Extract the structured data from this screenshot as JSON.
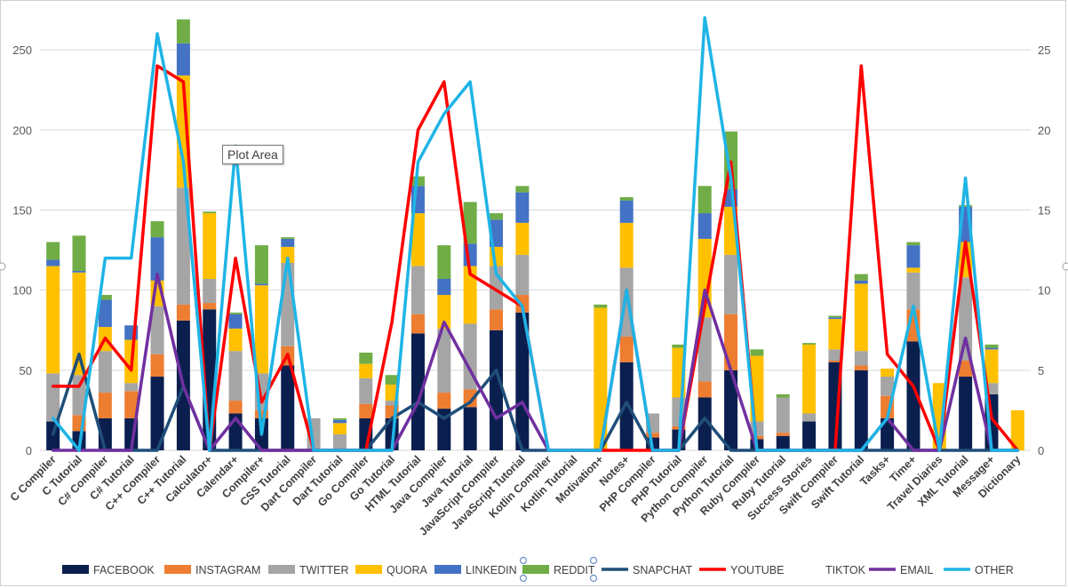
{
  "tooltip": "Plot Area",
  "chart_data": {
    "type": "bar",
    "stacked": true,
    "categories": [
      "C Compiler",
      "C Tutorial",
      "C# Compiler",
      "C# Tutorial",
      "C++ Compiler",
      "C++ Tutorial",
      "Calculator+",
      "Calendar+",
      "Compiler+",
      "CSS Tutorial",
      "Dart Compiler",
      "Dart Tutorial",
      "Go Compiler",
      "Go Tutorial",
      "HTML Tutorial",
      "Java Compiler",
      "Java Tutorial",
      "JavaScript Compiler",
      "JavaScript Tutorial",
      "Kotlin Compiler",
      "Kotlin Tutorial",
      "Motivation+",
      "Notes+",
      "PHP Compiler",
      "PHP Tutorial",
      "Python Compiler",
      "Python Tutorial",
      "Ruby Compiler",
      "Ruby Tutorial",
      "Success Stories",
      "Swift Compiler",
      "Swift Tutorial",
      "Tasks+",
      "Time+",
      "Travel Diaries",
      "XML Tutorial",
      "Message+",
      "Dictionary"
    ],
    "ylim": [
      0,
      270
    ],
    "y2lim": [
      0,
      27
    ],
    "y_ticks": [
      "0",
      "50",
      "100",
      "150",
      "200",
      "250"
    ],
    "y2_ticks": [
      "0",
      "5",
      "10",
      "15",
      "20",
      "25"
    ],
    "grid": true,
    "legend_position": "bottom",
    "bar_series": [
      {
        "name": "FACEBOOK",
        "color": "#0b1f4f",
        "values": [
          18,
          12,
          20,
          20,
          46,
          81,
          88,
          23,
          20,
          53,
          0,
          0,
          20,
          20,
          73,
          26,
          27,
          75,
          86,
          0,
          0,
          0,
          55,
          8,
          13,
          33,
          50,
          7,
          9,
          18,
          55,
          50,
          20,
          68,
          0,
          46,
          35,
          0
        ]
      },
      {
        "name": "INSTAGRAM",
        "color": "#ed7d31",
        "values": [
          0,
          10,
          16,
          17,
          14,
          10,
          4,
          8,
          5,
          12,
          0,
          0,
          9,
          8,
          12,
          10,
          11,
          13,
          11,
          0,
          0,
          0,
          16,
          3,
          2,
          10,
          35,
          2,
          2,
          0,
          1,
          3,
          14,
          20,
          0,
          10,
          0,
          0
        ]
      },
      {
        "name": "TWITTER",
        "color": "#a5a5a5",
        "values": [
          30,
          25,
          26,
          5,
          30,
          73,
          15,
          31,
          23,
          52,
          20,
          10,
          16,
          3,
          30,
          40,
          41,
          27,
          25,
          0,
          0,
          0,
          43,
          12,
          18,
          40,
          37,
          9,
          22,
          5,
          7,
          9,
          12,
          23,
          0,
          52,
          7,
          0
        ]
      },
      {
        "name": "QUORA",
        "color": "#ffc000",
        "values": [
          67,
          64,
          15,
          27,
          16,
          70,
          41,
          14,
          55,
          10,
          0,
          7,
          9,
          10,
          33,
          21,
          36,
          12,
          20,
          0,
          0,
          89,
          28,
          0,
          31,
          49,
          30,
          41,
          0,
          43,
          19,
          42,
          5,
          3,
          42,
          22,
          21,
          25
        ]
      },
      {
        "name": "LINKEDIN",
        "color": "#4472c4",
        "values": [
          4,
          1,
          17,
          9,
          27,
          20,
          0,
          9,
          1,
          5,
          0,
          2,
          0,
          0,
          17,
          10,
          14,
          17,
          19,
          0,
          0,
          0,
          14,
          0,
          0,
          16,
          11,
          0,
          0,
          0,
          1,
          2,
          0,
          14,
          0,
          22,
          1,
          0
        ]
      },
      {
        "name": "REDDIT",
        "color": "#70ad47",
        "values": [
          11,
          22,
          3,
          0,
          10,
          15,
          1,
          1,
          24,
          1,
          0,
          1,
          7,
          6,
          6,
          21,
          26,
          4,
          4,
          0,
          1,
          2,
          2,
          0,
          2,
          17,
          36,
          4,
          2,
          1,
          1,
          4,
          0,
          2,
          0,
          1,
          2,
          0
        ]
      }
    ],
    "line_series": [
      {
        "name": "SNAPCHAT",
        "color": "#1f4e79",
        "values": [
          1,
          6,
          0,
          0,
          0,
          4,
          0,
          0,
          0,
          0,
          0,
          0,
          0,
          2,
          3,
          2,
          3,
          5,
          0,
          0,
          0,
          0,
          3,
          0,
          0,
          2,
          0,
          0,
          0,
          0,
          0,
          0,
          0,
          0,
          0,
          0,
          0,
          0
        ]
      },
      {
        "name": "YOUTUBE",
        "color": "#ff0000",
        "values": [
          4,
          4,
          7,
          5,
          24,
          23,
          0,
          12,
          3,
          6,
          0,
          0,
          0,
          8,
          20,
          23,
          11,
          10,
          9,
          0,
          0,
          0,
          0,
          0,
          0,
          9,
          18,
          0,
          0,
          0,
          0,
          24,
          6,
          4,
          0,
          13,
          2,
          0
        ]
      },
      {
        "name": "TIKTOK",
        "color": "#ffffff",
        "values": [
          0,
          0,
          0,
          0,
          0,
          0,
          0,
          0,
          0,
          0,
          0,
          0,
          0,
          0,
          0,
          0,
          0,
          0,
          0,
          0,
          0,
          0,
          0,
          0,
          0,
          0,
          0,
          0,
          0,
          0,
          0,
          0,
          0,
          0,
          0,
          0,
          0,
          0
        ]
      },
      {
        "name": "EMAIL",
        "color": "#7030a0",
        "values": [
          0,
          0,
          0,
          0,
          11,
          4,
          0,
          2,
          0,
          0,
          0,
          0,
          0,
          0,
          3,
          8,
          5,
          2,
          3,
          0,
          0,
          0,
          10,
          0,
          0,
          10,
          5,
          0,
          0,
          0,
          0,
          0,
          2,
          0,
          0,
          7,
          0,
          0
        ]
      },
      {
        "name": "OTHER",
        "color": "#1fb4e6",
        "values": [
          2,
          0,
          12,
          12,
          26,
          18,
          0,
          19,
          1,
          12,
          0,
          0,
          0,
          0,
          18,
          21,
          23,
          11,
          9,
          0,
          0,
          0,
          10,
          0,
          0,
          27,
          17,
          0,
          0,
          0,
          0,
          0,
          2,
          9,
          0,
          17,
          0,
          0
        ]
      }
    ]
  }
}
